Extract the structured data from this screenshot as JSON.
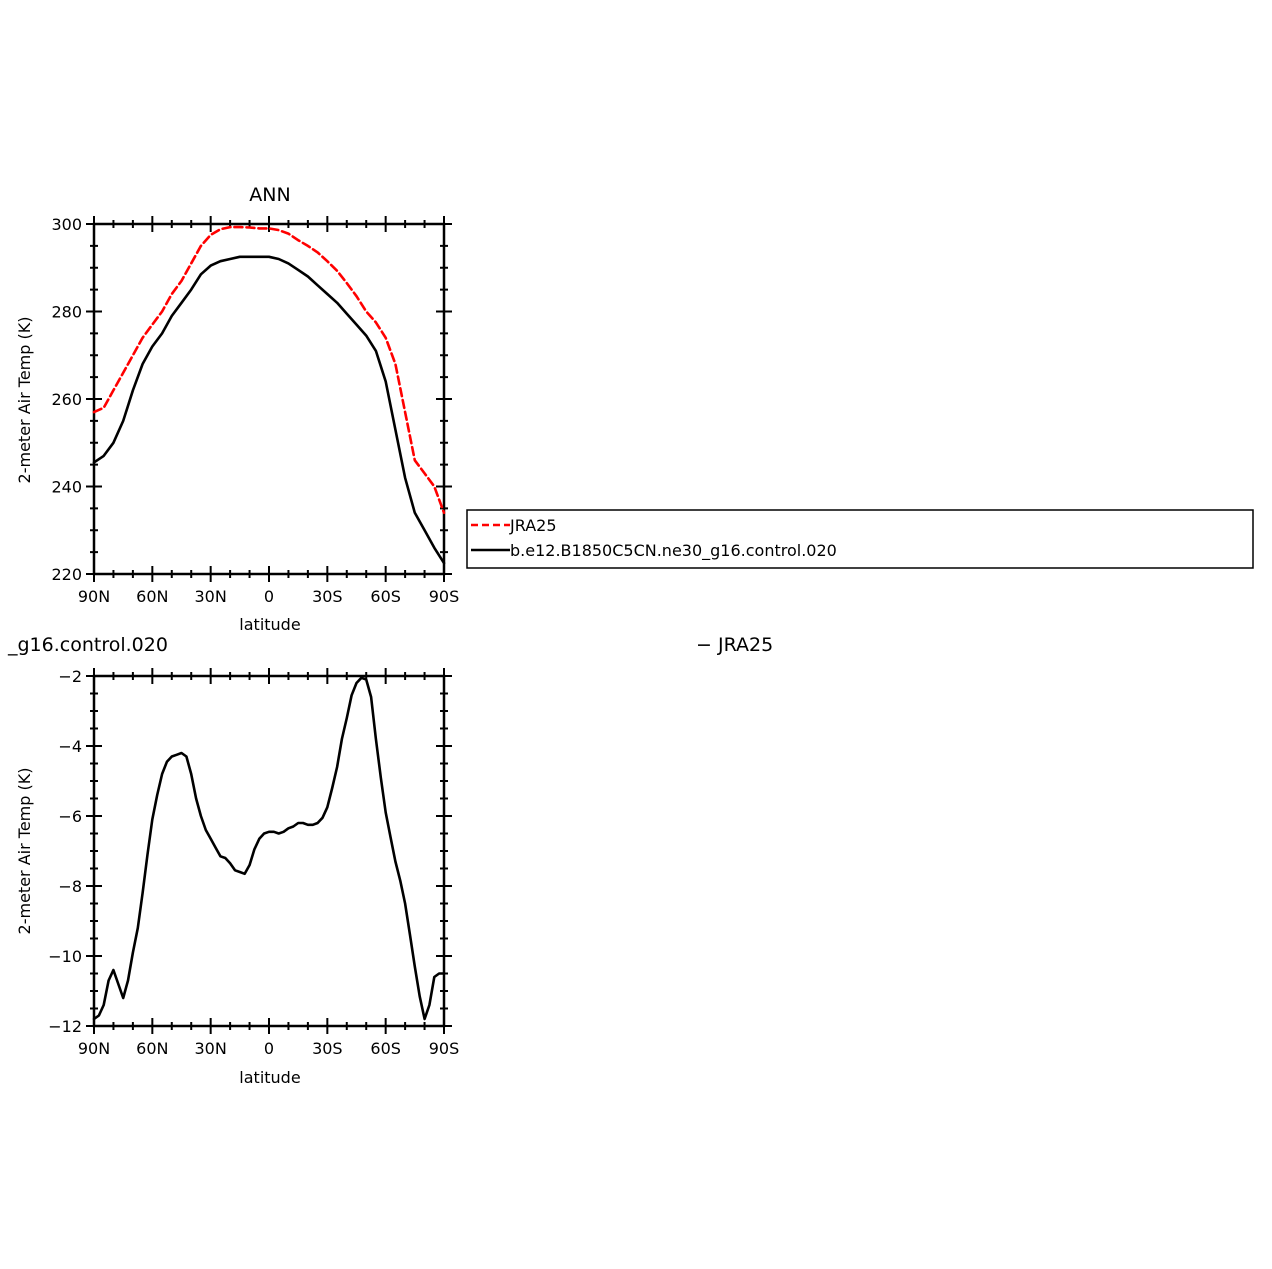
{
  "chart_data": [
    {
      "type": "line",
      "title": "ANN",
      "xlabel": "latitude",
      "ylabel": "2-meter Air Temp (K)",
      "x": [
        90,
        85,
        80,
        75,
        70,
        65,
        60,
        55,
        50,
        45,
        40,
        35,
        30,
        25,
        20,
        15,
        10,
        5,
        0,
        -5,
        -10,
        -15,
        -20,
        -25,
        -30,
        -35,
        -40,
        -45,
        -50,
        -55,
        -60,
        -65,
        -70,
        -75,
        -80,
        -85,
        -90
      ],
      "xlim": [
        90,
        -90
      ],
      "ylim": [
        220,
        300
      ],
      "xtick_values": [
        90,
        60,
        30,
        0,
        -30,
        -60,
        -90
      ],
      "xtick_labels": [
        "90N",
        "60N",
        "30N",
        "0",
        "30S",
        "60S",
        "90S"
      ],
      "ytick_values": [
        220,
        240,
        260,
        280,
        300
      ],
      "ytick_labels": [
        "220",
        "240",
        "260",
        "280",
        "300"
      ],
      "grid": false,
      "legend_position": "right",
      "series": [
        {
          "name": "JRA25",
          "color": "#ff0000",
          "dash": "dashed",
          "values": [
            257,
            258,
            262,
            266,
            270,
            274,
            277,
            280,
            284,
            287,
            291,
            295,
            297.5,
            298.8,
            299.3,
            299.3,
            299.2,
            299,
            299,
            298.6,
            297.8,
            296.3,
            295,
            293.5,
            291.5,
            289.3,
            286.5,
            283.5,
            280,
            277.5,
            274,
            268,
            257,
            246,
            243,
            240,
            234
          ]
        },
        {
          "name": "b.e12.B1850C5CN.ne30_g16.control.020",
          "color": "#000000",
          "dash": "solid",
          "values": [
            245.5,
            247,
            250,
            255,
            262,
            268,
            272,
            275,
            279,
            282,
            285,
            288.5,
            290.5,
            291.5,
            292,
            292.5,
            292.5,
            292.5,
            292.5,
            292,
            291,
            289.5,
            288,
            286,
            284,
            282,
            279.5,
            277,
            274.5,
            271,
            264,
            253,
            242,
            234,
            230,
            226,
            222.5
          ]
        }
      ]
    },
    {
      "type": "line",
      "title": "",
      "xlabel": "latitude",
      "ylabel": "2-meter Air Temp (K)",
      "x": [
        90,
        87.5,
        85,
        82.5,
        80,
        77.5,
        75,
        72.5,
        70,
        67.5,
        65,
        62.5,
        60,
        57.5,
        55,
        52.5,
        50,
        47.5,
        45,
        42.5,
        40,
        37.5,
        35,
        32.5,
        30,
        27.5,
        25,
        22.5,
        20,
        17.5,
        15,
        12.5,
        10,
        7.5,
        5,
        2.5,
        0,
        -2.5,
        -5,
        -7.5,
        -10,
        -12.5,
        -15,
        -17.5,
        -20,
        -22.5,
        -25,
        -27.5,
        -30,
        -32.5,
        -35,
        -37.5,
        -40,
        -42.5,
        -45,
        -47.5,
        -50,
        -52.5,
        -55,
        -57.5,
        -60,
        -62.5,
        -65,
        -67.5,
        -70,
        -72.5,
        -75,
        -77.5,
        -80,
        -82.5,
        -85,
        -87.5,
        -90
      ],
      "xlim": [
        90,
        -90
      ],
      "ylim": [
        -12,
        -2
      ],
      "xtick_values": [
        90,
        60,
        30,
        0,
        -30,
        -60,
        -90
      ],
      "xtick_labels": [
        "90N",
        "60N",
        "30N",
        "0",
        "30S",
        "60S",
        "90S"
      ],
      "ytick_values": [
        -12,
        -10,
        -8,
        -6,
        -4,
        -2
      ],
      "ytick_labels": [
        "-12",
        "-10",
        "-8",
        "-6",
        "-4",
        "-2"
      ],
      "grid": false,
      "series": [
        {
          "color": "#000000",
          "dash": "solid",
          "values": [
            -11.8,
            -11.7,
            -11.4,
            -10.7,
            -10.4,
            -10.8,
            -11.2,
            -10.7,
            -9.9,
            -9.2,
            -8.2,
            -7.1,
            -6.1,
            -5.4,
            -4.8,
            -4.45,
            -4.3,
            -4.25,
            -4.2,
            -4.3,
            -4.8,
            -5.5,
            -6.0,
            -6.4,
            -6.65,
            -6.9,
            -7.15,
            -7.2,
            -7.35,
            -7.55,
            -7.6,
            -7.65,
            -7.4,
            -6.95,
            -6.65,
            -6.5,
            -6.45,
            -6.45,
            -6.5,
            -6.45,
            -6.35,
            -6.3,
            -6.2,
            -6.2,
            -6.25,
            -6.25,
            -6.2,
            -6.05,
            -5.75,
            -5.2,
            -4.6,
            -3.8,
            -3.2,
            -2.55,
            -2.2,
            -2.05,
            -2.1,
            -2.6,
            -3.8,
            -4.9,
            -5.9,
            -6.6,
            -7.3,
            -7.85,
            -8.5,
            -9.4,
            -10.3,
            -11.15,
            -11.8,
            -11.4,
            -10.6,
            -10.5,
            -10.5
          ]
        }
      ]
    }
  ],
  "legend": {
    "entries": [
      {
        "label": "JRA25",
        "color": "#ff0000",
        "dash": "dashed"
      },
      {
        "label": "b.e12.B1850C5CN.ne30_g16.control.020",
        "color": "#000000",
        "dash": "solid"
      }
    ]
  },
  "bottom_title": {
    "left_text": "_g16.control.020",
    "right_text": "− JRA25"
  }
}
